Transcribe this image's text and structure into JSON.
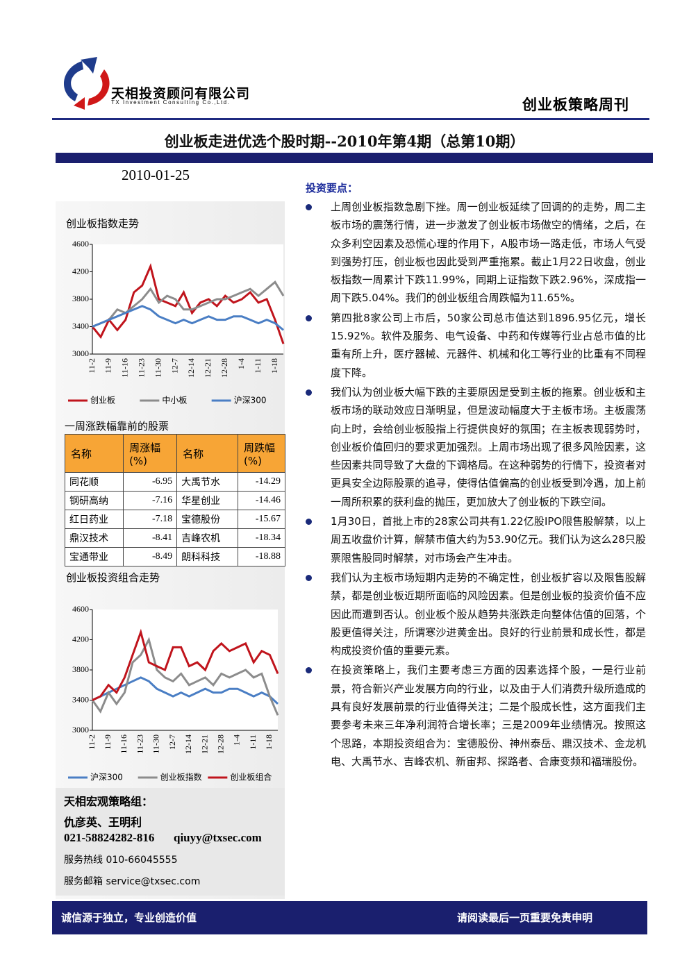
{
  "header": {
    "company": "天相投资顾问有限公司",
    "company_en": "TX Investment Consulting Co.,Ltd.",
    "publication": "创业板策略周刊"
  },
  "title": "创业板走进优选个股时期--2010年第4期（总第10期）",
  "date": "2010-01-25",
  "section_title": "投资要点：",
  "bullets": [
    "上周创业板指数急剧下挫。周一创业板延续了回调的的走势，周二主板市场的震荡行情，进一步激发了创业板市场做空的情绪，之后，在众多利空因素及恐慌心理的作用下，A股市场一路走低，市场人气受到强势打压，创业板也因此受到严重拖累。截止1月22日收盘，创业板指数一周累计下跌11.99%，同期上证指数下跌2.96%，深成指一周下跌5.04%。我们的创业板组合周跌幅为11.65%。",
    "第四批8家公司上市后，50家公司总市值达到1896.95亿元，增长15.92%。软件及服务、电气设备、中药和传媒等行业占总市值的比重有所上升，医疗器械、元器件、机械和化工等行业的比重有不同程度下降。",
    "我们认为创业板大幅下跌的主要原因是受到主板的拖累。创业板和主板市场的联动效应日渐明显，但是波动幅度大于主板市场。主板震荡向上时，会给创业板股指上行提供良好的氛围；在主板表现弱势时，创业板价值回归的要求更加强烈。上周市场出现了很多风险因素，这些因素共同导致了大盘的下调格局。在这种弱势的行情下，投资者对更具安全边际股票的追寻，使得估值偏高的创业板受到冷遇，加上前一周所积累的获利盘的抛压，更加放大了创业板的下跌空间。",
    "1月30日，首批上市的28家公司共有1.22亿股IPO限售股解禁，以上周五收盘价计算，解禁市值大约为53.90亿元。我们认为这么28只股票限售股同时解禁，对市场会产生冲击。",
    "我们认为主板市场短期内走势的不确定性，创业板扩容以及限售股解禁，都是创业板近期所面临的风险因素。但是创业板的投资价值不应因此而遭到否认。创业板个股从趋势共涨跌走向整体估值的回落，个股更值得关注，所谓寒沙进黄金出。良好的行业前景和成长性，都是构成投资价值的重要元素。",
    "在投资策略上，我们主要考虑三方面的因素选择个股，一是行业前景，符合新兴产业发展方向的行业，以及由于人们消费升级所造成的具有良好发展前景的行业值得关注；二是个股成长性，这方面我们主要参考未来三年净利润符合增长率；三是2009年业绩情况。按照这个思路，本期投资组合为：宝德股份、神州泰岳、鼎汉技术、金龙机电、大禹节水、吉峰农机、新宙邦、探路者、合康变频和福瑞股份。"
  ],
  "table": {
    "caption": "一周涨跌幅靠前的股票",
    "header": [
      "名称",
      "周涨幅(%)",
      "名称",
      "周跌幅(%)"
    ],
    "rows": [
      [
        "同花顺",
        -6.95,
        "大禹节水",
        -14.29
      ],
      [
        "钢研高纳",
        -7.16,
        "华星创业",
        -14.46
      ],
      [
        "红日药业",
        -7.18,
        "宝德股份",
        -15.67
      ],
      [
        "鼎汉技术",
        -8.41,
        "吉峰农机",
        -18.34
      ],
      [
        "宝通带业",
        -8.49,
        "朗科科技",
        -18.88
      ]
    ]
  },
  "contact": {
    "team": "天相宏观策略组：",
    "names": "仇彦英、王明利",
    "phone": "021-58824282-816",
    "email": "qiuyy@txsec.com",
    "hotline": "服务热线 010-66045555",
    "service_email": "服务邮箱 service@txsec.com"
  },
  "footer": {
    "left": "诚信源于独立，专业创造价值",
    "right": "请阅读最后一页重要免责申明"
  },
  "chart_data": [
    {
      "type": "line",
      "title": "创业板指数走势",
      "categories": [
        "11-2",
        null,
        "11-9",
        null,
        "11-16",
        null,
        "11-23",
        null,
        "11-30",
        null,
        "12-7",
        null,
        "12-14",
        null,
        "12-21",
        null,
        "12-28",
        null,
        "1-4",
        null,
        "1-11",
        null,
        "1-18",
        null
      ],
      "ylim": [
        3000,
        4600
      ],
      "yticks": [
        3000,
        3400,
        3800,
        4200,
        4600
      ],
      "series": [
        {
          "name": "创业板",
          "color": "#c0141c",
          "values": [
            3400,
            3250,
            3500,
            3350,
            3500,
            3900,
            4000,
            4280,
            3800,
            3750,
            3700,
            3900,
            3600,
            3750,
            3800,
            3700,
            3850,
            3750,
            3800,
            3900,
            3750,
            3800,
            3500,
            3150
          ]
        },
        {
          "name": "中小板",
          "color": "#8c8c8c",
          "values": [
            3400,
            3450,
            3500,
            3650,
            3600,
            3700,
            3800,
            3950,
            3750,
            3850,
            3800,
            3650,
            3650,
            3700,
            3750,
            3800,
            3800,
            3850,
            3900,
            3950,
            3850,
            3950,
            4050,
            3850
          ]
        },
        {
          "name": "沪深300",
          "color": "#4a7ec4",
          "values": [
            3400,
            3450,
            3500,
            3550,
            3600,
            3650,
            3700,
            3650,
            3550,
            3500,
            3450,
            3500,
            3450,
            3500,
            3550,
            3500,
            3500,
            3550,
            3550,
            3500,
            3450,
            3500,
            3450,
            3350
          ]
        }
      ]
    },
    {
      "type": "line",
      "title": "创业板投资组合走势",
      "categories": [
        "11-2",
        null,
        "11-9",
        null,
        "11-16",
        null,
        "11-23",
        null,
        "11-30",
        null,
        "12-7",
        null,
        "12-14",
        null,
        "12-21",
        null,
        "12-28",
        null,
        "1-4",
        null,
        "1-11",
        null,
        "1-18",
        null
      ],
      "ylim": [
        3000,
        4600
      ],
      "yticks": [
        3000,
        3400,
        3800,
        4200,
        4600
      ],
      "series": [
        {
          "name": "沪深300",
          "color": "#4a7ec4",
          "values": [
            3400,
            3450,
            3500,
            3550,
            3600,
            3650,
            3700,
            3650,
            3550,
            3500,
            3450,
            3500,
            3450,
            3500,
            3550,
            3500,
            3500,
            3550,
            3550,
            3500,
            3450,
            3500,
            3450,
            3350
          ]
        },
        {
          "name": "创业板指数",
          "color": "#8c8c8c",
          "values": [
            3400,
            3250,
            3500,
            3350,
            3500,
            3900,
            4000,
            4200,
            3800,
            3700,
            3650,
            3750,
            3600,
            3650,
            3700,
            3600,
            3750,
            3700,
            3750,
            3800,
            3700,
            3750,
            3450,
            3200
          ]
        },
        {
          "name": "创业板组合",
          "color": "#c0141c",
          "values": [
            3400,
            3450,
            3600,
            3500,
            3700,
            4000,
            4300,
            3900,
            3850,
            3800,
            4100,
            4100,
            3850,
            3900,
            3800,
            4050,
            4150,
            4050,
            4100,
            4150,
            3900,
            4050,
            4000,
            3750
          ]
        }
      ]
    }
  ]
}
